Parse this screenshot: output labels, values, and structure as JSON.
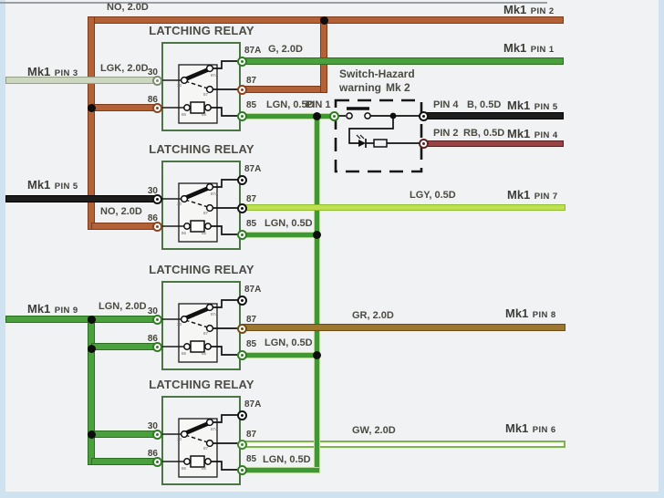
{
  "diagram": {
    "relay": {
      "title": "LATCHING RELAY",
      "terminals": {
        "t30": "30",
        "t86": "86",
        "t87a": "87A",
        "t87": "87",
        "t85": "85"
      }
    },
    "switch_box": {
      "title_line1": "Switch-Hazard",
      "title_line2": "warning",
      "variant": "Mk 2"
    },
    "wire_labels": {
      "no_top": "NO, 2.0D",
      "g": "G, 2.0D",
      "lgk": "LGK, 2.0D",
      "lgn_r1": "LGN, 0.5D",
      "pin1": "PIN 1",
      "pin4": "PIN 4",
      "b": "B, 0.5D",
      "pin2": "PIN 2",
      "rb": "RB, 0.5D",
      "no_r2": "NO, 2.0D",
      "lgy": "LGY, 0.5D",
      "lgn_r2": "LGN, 0.5D",
      "lgn2": "LGN, 2.0D",
      "gr": "GR, 2.0D",
      "lgn_r3": "LGN, 0.5D",
      "gw": "GW, 2.0D",
      "lgn_r4": "LGN, 0.5D"
    },
    "connectors": {
      "pin2_r": {
        "mk": "Mk1",
        "pin": "PIN 2"
      },
      "pin1_r": {
        "mk": "Mk1",
        "pin": "PIN 1"
      },
      "pin3_l": {
        "mk": "Mk1",
        "pin": "PIN 3"
      },
      "pin5_r": {
        "mk": "Mk1",
        "pin": "PIN 5"
      },
      "pin4_r": {
        "mk": "Mk1",
        "pin": "PIN 4"
      },
      "pin5_l": {
        "mk": "Mk1",
        "pin": "PIN 5"
      },
      "pin7_r": {
        "mk": "Mk1",
        "pin": "PIN 7"
      },
      "pin9_l": {
        "mk": "Mk1",
        "pin": "PIN 9"
      },
      "pin8_r": {
        "mk": "Mk1",
        "pin": "PIN 8"
      },
      "pin6_r": {
        "mk": "Mk1",
        "pin": "PIN 6"
      }
    },
    "colors": {
      "background": "#f1f2f4",
      "page_edge_blue": "#cfe2f0",
      "relay_border_green": "#4b7544",
      "wire_colors": {
        "brown": [
          "#b26236",
          "#7c3b1b"
        ],
        "green": [
          "#4aa03c",
          "#2c6e20"
        ],
        "lgn": [
          "#3c9a34",
          "#b7da9c"
        ],
        "lgk": [
          "#cdd7bf",
          "#939f88"
        ],
        "lgy": [
          "#bfe051",
          "#8fbc2d"
        ],
        "gr": [
          "#9d7730",
          "#6b4b11"
        ],
        "rb": [
          "#9b4242",
          "#521f1f"
        ],
        "black": [
          "#1d1d1d",
          "#000000"
        ],
        "gw": [
          "#fbfdf6",
          "#7ab549"
        ]
      }
    }
  }
}
